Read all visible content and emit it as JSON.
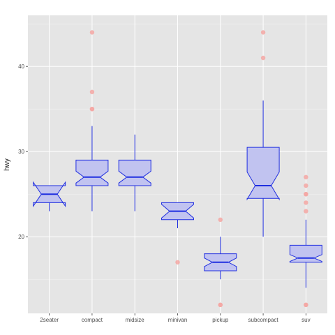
{
  "chart_data": {
    "type": "boxplot",
    "notched": true,
    "title": "",
    "xlabel": "",
    "ylabel": "hwy",
    "ylim": [
      11,
      46
    ],
    "yticks": [
      20,
      30,
      40
    ],
    "grid": true,
    "categories": [
      "2seater",
      "compact",
      "midsize",
      "minivan",
      "pickup",
      "subcompact",
      "suv"
    ],
    "boxes": [
      {
        "category": "2seater",
        "whisker_low": 23,
        "q1": 24,
        "median": 25,
        "q3": 26,
        "whisker_high": 26,
        "notch_low": 23.6,
        "notch_high": 26.4,
        "outliers": []
      },
      {
        "category": "compact",
        "whisker_low": 23,
        "q1": 26,
        "median": 27,
        "q3": 29,
        "whisker_high": 33,
        "notch_low": 26.3,
        "notch_high": 27.7,
        "outliers": [
          35,
          35,
          37,
          44
        ]
      },
      {
        "category": "midsize",
        "whisker_low": 23,
        "q1": 26,
        "median": 27,
        "q3": 29,
        "whisker_high": 32,
        "notch_low": 26.3,
        "notch_high": 27.7,
        "outliers": []
      },
      {
        "category": "minivan",
        "whisker_low": 21,
        "q1": 22,
        "median": 23,
        "q3": 24,
        "whisker_high": 24,
        "notch_low": 22.2,
        "notch_high": 23.8,
        "outliers": [
          17
        ]
      },
      {
        "category": "pickup",
        "whisker_low": 15,
        "q1": 16,
        "median": 17,
        "q3": 18,
        "whisker_high": 20,
        "notch_low": 16.5,
        "notch_high": 17.5,
        "outliers": [
          12,
          12,
          22
        ]
      },
      {
        "category": "subcompact",
        "whisker_low": 20,
        "q1": 24.5,
        "median": 26,
        "q3": 30.5,
        "whisker_high": 36,
        "notch_low": 24.4,
        "notch_high": 27.6,
        "outliers": [
          41,
          44
        ]
      },
      {
        "category": "suv",
        "whisker_low": 14,
        "q1": 17,
        "median": 17.5,
        "q3": 19,
        "whisker_high": 22,
        "notch_low": 17.1,
        "notch_high": 17.9,
        "outliers": [
          12,
          12,
          23,
          24,
          25,
          25,
          26,
          27
        ]
      }
    ],
    "colors": {
      "panel_bg": "#e5e5e5",
      "grid_major": "#ffffff",
      "box_fill": "#c1c3f0",
      "box_stroke": "#1f2ee0",
      "outlier": "#f4a7a3"
    }
  }
}
